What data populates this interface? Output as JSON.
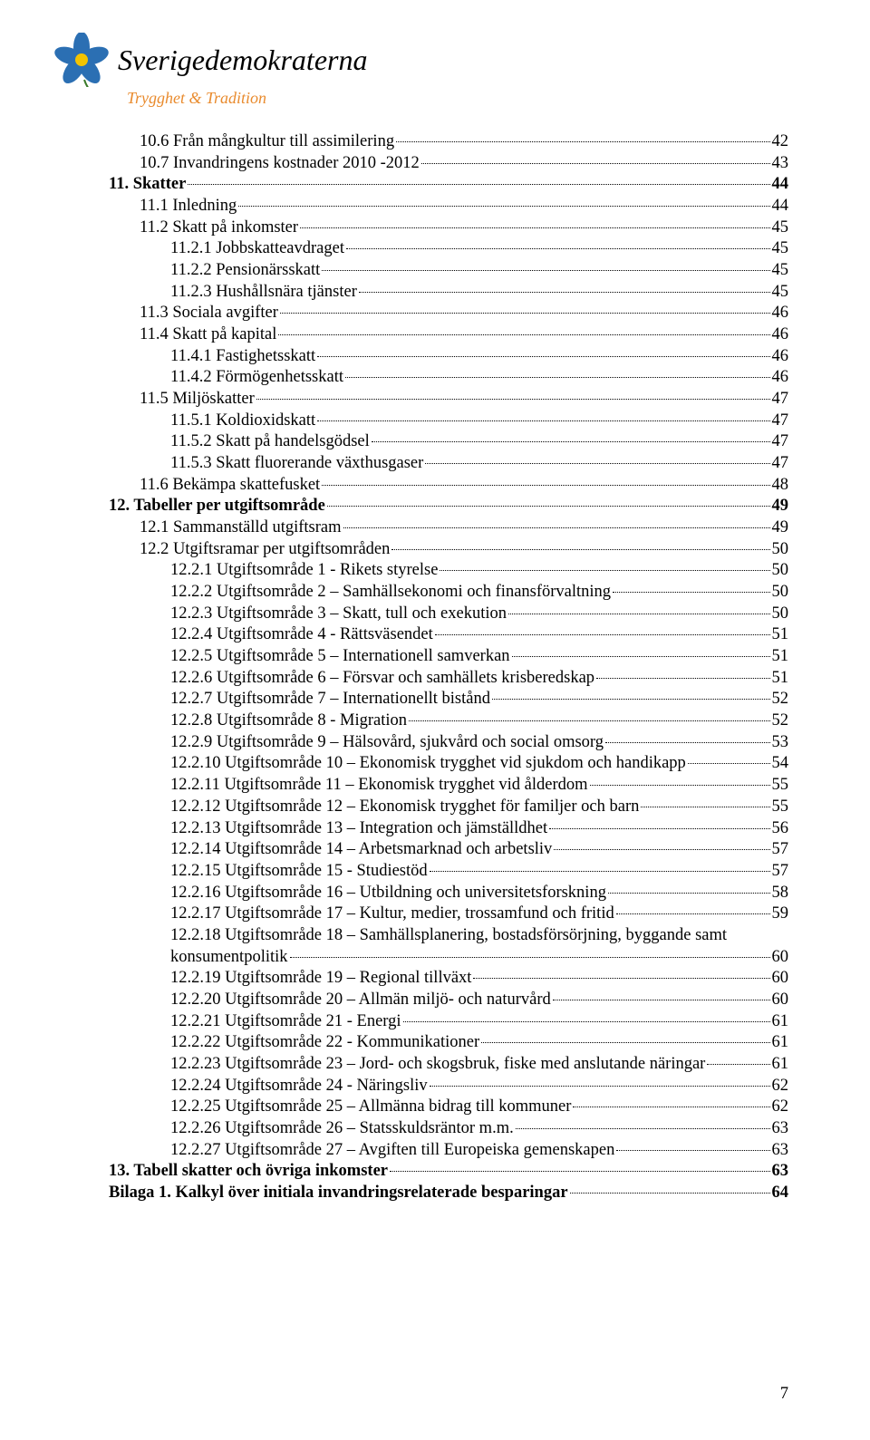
{
  "brand": {
    "name": "Sverigedemokraterna",
    "tagline": "Trygghet & Tradition"
  },
  "page_number": "7",
  "colors": {
    "flower_petal": "#2b6fb3",
    "flower_center": "#f3c300",
    "tagline": "#e98b2e"
  },
  "toc": [
    {
      "level": 2,
      "bold": false,
      "label": "10.6 Från mångkultur till assimilering",
      "page": "42"
    },
    {
      "level": 2,
      "bold": false,
      "label": "10.7 Invandringens kostnader 2010 -2012",
      "page": "43"
    },
    {
      "level": 1,
      "bold": true,
      "label": "11. Skatter",
      "page": "44"
    },
    {
      "level": 2,
      "bold": false,
      "label": "11.1 Inledning",
      "page": "44"
    },
    {
      "level": 2,
      "bold": false,
      "label": "11.2 Skatt på inkomster",
      "page": "45"
    },
    {
      "level": 3,
      "bold": false,
      "label": "11.2.1 Jobbskatteavdraget",
      "page": "45"
    },
    {
      "level": 3,
      "bold": false,
      "label": "11.2.2 Pensionärsskatt",
      "page": "45"
    },
    {
      "level": 3,
      "bold": false,
      "label": "11.2.3 Hushållsnära tjänster",
      "page": "45"
    },
    {
      "level": 2,
      "bold": false,
      "label": "11.3 Sociala avgifter",
      "page": "46"
    },
    {
      "level": 2,
      "bold": false,
      "label": "11.4 Skatt på kapital",
      "page": "46"
    },
    {
      "level": 3,
      "bold": false,
      "label": "11.4.1 Fastighetsskatt",
      "page": "46"
    },
    {
      "level": 3,
      "bold": false,
      "label": "11.4.2 Förmögenhetsskatt",
      "page": "46"
    },
    {
      "level": 2,
      "bold": false,
      "label": "11.5 Miljöskatter",
      "page": "47"
    },
    {
      "level": 3,
      "bold": false,
      "label": "11.5.1 Koldioxidskatt",
      "page": "47"
    },
    {
      "level": 3,
      "bold": false,
      "label": "11.5.2 Skatt på handelsgödsel",
      "page": "47"
    },
    {
      "level": 3,
      "bold": false,
      "label": "11.5.3 Skatt fluorerande växthusgaser",
      "page": "47"
    },
    {
      "level": 2,
      "bold": false,
      "label": "11.6 Bekämpa skattefusket",
      "page": "48"
    },
    {
      "level": 1,
      "bold": true,
      "label": "12. Tabeller per utgiftsområde",
      "page": "49"
    },
    {
      "level": 2,
      "bold": false,
      "label": "12.1 Sammanställd utgiftsram",
      "page": "49"
    },
    {
      "level": 2,
      "bold": false,
      "label": "12.2 Utgiftsramar per utgiftsområden",
      "page": "50"
    },
    {
      "level": 3,
      "bold": false,
      "label": "12.2.1 Utgiftsområde 1 - Rikets styrelse",
      "page": "50"
    },
    {
      "level": 3,
      "bold": false,
      "label": "12.2.2 Utgiftsområde 2 – Samhällsekonomi och finansförvaltning",
      "page": "50"
    },
    {
      "level": 3,
      "bold": false,
      "label": "12.2.3 Utgiftsområde 3 – Skatt, tull och exekution",
      "page": "50"
    },
    {
      "level": 3,
      "bold": false,
      "label": "12.2.4 Utgiftsområde 4 - Rättsväsendet",
      "page": "51"
    },
    {
      "level": 3,
      "bold": false,
      "label": "12.2.5 Utgiftsområde 5 – Internationell samverkan",
      "page": "51"
    },
    {
      "level": 3,
      "bold": false,
      "label": "12.2.6 Utgiftsområde 6 – Försvar och samhällets krisberedskap",
      "page": "51"
    },
    {
      "level": 3,
      "bold": false,
      "label": "12.2.7 Utgiftsområde 7 – Internationellt bistånd",
      "page": "52"
    },
    {
      "level": 3,
      "bold": false,
      "label": "12.2.8 Utgiftsområde 8 - Migration",
      "page": "52"
    },
    {
      "level": 3,
      "bold": false,
      "label": "12.2.9 Utgiftsområde 9 – Hälsovård, sjukvård och social omsorg",
      "page": "53"
    },
    {
      "level": 3,
      "bold": false,
      "label": "12.2.10 Utgiftsområde 10 – Ekonomisk trygghet vid sjukdom och handikapp",
      "page": "54"
    },
    {
      "level": 3,
      "bold": false,
      "label": "12.2.11 Utgiftsområde 11 – Ekonomisk trygghet vid ålderdom",
      "page": "55"
    },
    {
      "level": 3,
      "bold": false,
      "label": "12.2.12 Utgiftsområde 12 – Ekonomisk trygghet för familjer och barn",
      "page": "55"
    },
    {
      "level": 3,
      "bold": false,
      "label": "12.2.13 Utgiftsområde 13 – Integration och jämställdhet",
      "page": "56"
    },
    {
      "level": 3,
      "bold": false,
      "label": "12.2.14 Utgiftsområde 14 – Arbetsmarknad och arbetsliv",
      "page": "57"
    },
    {
      "level": 3,
      "bold": false,
      "label": "12.2.15 Utgiftsområde 15 - Studiestöd",
      "page": "57"
    },
    {
      "level": 3,
      "bold": false,
      "label": "12.2.16 Utgiftsområde 16 – Utbildning och universitetsforskning",
      "page": "58"
    },
    {
      "level": 3,
      "bold": false,
      "label": "12.2.17 Utgiftsområde 17 – Kultur, medier, trossamfund och fritid",
      "page": "59"
    },
    {
      "level": 3,
      "bold": false,
      "label": "12.2.18 Utgiftsområde 18 – Samhällsplanering, bostadsförsörjning, byggande samt",
      "page": "",
      "noleader": true
    },
    {
      "level": 3,
      "bold": false,
      "label": "konsumentpolitik",
      "page": "60"
    },
    {
      "level": 3,
      "bold": false,
      "label": "12.2.19 Utgiftsområde 19 – Regional tillväxt",
      "page": "60"
    },
    {
      "level": 3,
      "bold": false,
      "label": "12.2.20 Utgiftsområde 20 – Allmän miljö- och naturvård",
      "page": "60"
    },
    {
      "level": 3,
      "bold": false,
      "label": "12.2.21 Utgiftsområde 21 - Energi",
      "page": "61"
    },
    {
      "level": 3,
      "bold": false,
      "label": "12.2.22 Utgiftsområde 22 - Kommunikationer",
      "page": "61"
    },
    {
      "level": 3,
      "bold": false,
      "label": "12.2.23 Utgiftsområde 23 – Jord- och skogsbruk, fiske med anslutande näringar",
      "page": "61"
    },
    {
      "level": 3,
      "bold": false,
      "label": "12.2.24 Utgiftsområde 24 - Näringsliv",
      "page": "62"
    },
    {
      "level": 3,
      "bold": false,
      "label": "12.2.25 Utgiftsområde 25 – Allmänna bidrag till kommuner",
      "page": "62"
    },
    {
      "level": 3,
      "bold": false,
      "label": "12.2.26 Utgiftsområde 26 – Statsskuldsräntor m.m.",
      "page": "63"
    },
    {
      "level": 3,
      "bold": false,
      "label": "12.2.27 Utgiftsområde 27 – Avgiften till Europeiska gemenskapen",
      "page": "63"
    },
    {
      "level": 1,
      "bold": true,
      "label": "13. Tabell skatter och övriga inkomster",
      "page": "63"
    },
    {
      "level": 1,
      "bold": true,
      "label": "Bilaga 1.  Kalkyl över initiala invandringsrelaterade besparingar",
      "page": "64"
    }
  ]
}
